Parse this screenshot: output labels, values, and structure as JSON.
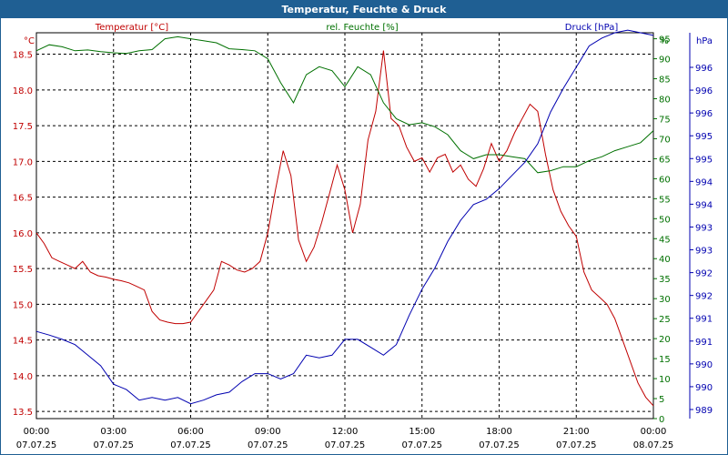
{
  "window": {
    "title": "Temperatur, Feuchte & Druck"
  },
  "colors": {
    "temperature": "#c00000",
    "humidity": "#007000",
    "pressure": "#0000b0",
    "frame": "#1f5f93"
  },
  "chart_data": {
    "type": "line",
    "title": "Temperatur, Feuchte & Druck",
    "grid": true,
    "x_ticks": [
      {
        "time": "00:00",
        "date": "07.07.25"
      },
      {
        "time": "03:00",
        "date": "07.07.25"
      },
      {
        "time": "06:00",
        "date": "07.07.25"
      },
      {
        "time": "09:00",
        "date": "07.07.25"
      },
      {
        "time": "12:00",
        "date": "07.07.25"
      },
      {
        "time": "15:00",
        "date": "07.07.25"
      },
      {
        "time": "18:00",
        "date": "07.07.25"
      },
      {
        "time": "21:00",
        "date": "07.07.25"
      },
      {
        "time": "00:00",
        "date": "08.07.25"
      }
    ],
    "axes": {
      "temperature": {
        "label": "Temperatur [°C]",
        "unit": "°C",
        "range": [
          13.4,
          18.8
        ],
        "ticks": [
          "13.5",
          "14.0",
          "14.5",
          "15.0",
          "15.5",
          "16.0",
          "16.5",
          "17.0",
          "17.5",
          "18.0",
          "18.5"
        ]
      },
      "humidity": {
        "label": "rel. Feuchte [%]",
        "unit": "%",
        "range": [
          0,
          96.5
        ],
        "ticks": [
          "0",
          "5",
          "10",
          "15",
          "20",
          "25",
          "30",
          "35",
          "40",
          "45",
          "50",
          "55",
          "60",
          "65",
          "70",
          "75",
          "80",
          "85",
          "90",
          "95"
        ]
      },
      "pressure": {
        "label": "Druck [hPa]",
        "unit": "hPa",
        "range": [
          989.4,
          996.7
        ],
        "ticks": [
          "989",
          "990",
          "990",
          "991",
          "991",
          "992",
          "992",
          "993",
          "993",
          "994",
          "994",
          "995",
          "995",
          "996",
          "996",
          "996"
        ]
      }
    },
    "series": [
      {
        "name": "Temperatur [°C]",
        "axis": "temperature",
        "x": [
          0,
          0.3,
          0.6,
          0.9,
          1.2,
          1.5,
          1.8,
          2.1,
          2.4,
          2.7,
          3.0,
          3.3,
          3.6,
          3.9,
          4.2,
          4.5,
          4.8,
          5.1,
          5.4,
          5.7,
          6.0,
          6.3,
          6.6,
          6.9,
          7.2,
          7.5,
          7.8,
          8.1,
          8.4,
          8.7,
          9.0,
          9.3,
          9.6,
          9.9,
          10.2,
          10.5,
          10.8,
          11.1,
          11.4,
          11.7,
          12.0,
          12.3,
          12.6,
          12.9,
          13.2,
          13.5,
          13.8,
          14.1,
          14.4,
          14.7,
          15.0,
          15.3,
          15.6,
          15.9,
          16.2,
          16.5,
          16.8,
          17.1,
          17.4,
          17.7,
          18.0,
          18.3,
          18.6,
          18.9,
          19.2,
          19.5,
          19.8,
          20.1,
          20.4,
          20.7,
          21.0,
          21.3,
          21.6,
          21.9,
          22.2,
          22.5,
          22.8,
          23.1,
          23.4,
          23.7,
          24.0
        ],
        "y": [
          16.0,
          15.85,
          15.65,
          15.6,
          15.55,
          15.5,
          15.6,
          15.45,
          15.4,
          15.38,
          15.35,
          15.33,
          15.3,
          15.25,
          15.2,
          14.9,
          14.78,
          14.75,
          14.73,
          14.73,
          14.75,
          14.9,
          15.05,
          15.2,
          15.6,
          15.55,
          15.48,
          15.45,
          15.5,
          15.6,
          16.0,
          16.6,
          17.15,
          16.8,
          15.9,
          15.6,
          15.8,
          16.15,
          16.55,
          16.95,
          16.6,
          16.0,
          16.4,
          17.3,
          17.7,
          18.55,
          17.6,
          17.5,
          17.2,
          17.0,
          17.05,
          16.85,
          17.05,
          17.1,
          16.85,
          16.95,
          16.75,
          16.65,
          16.9,
          17.25,
          17.0,
          17.15,
          17.4,
          17.6,
          17.8,
          17.7,
          17.1,
          16.6,
          16.3,
          16.1,
          15.95,
          15.45,
          15.2,
          15.1,
          15.0,
          14.8,
          14.5,
          14.2,
          13.9,
          13.7,
          13.58
        ]
      },
      {
        "name": "rel. Feuchte [%]",
        "axis": "humidity",
        "x": [
          0,
          0.5,
          1.0,
          1.5,
          2.0,
          2.5,
          3.0,
          3.5,
          4.0,
          4.5,
          5.0,
          5.5,
          6.0,
          6.5,
          7.0,
          7.5,
          8.0,
          8.5,
          9.0,
          9.5,
          10.0,
          10.5,
          11.0,
          11.5,
          12.0,
          12.5,
          13.0,
          13.5,
          14.0,
          14.5,
          15.0,
          15.5,
          16.0,
          16.5,
          17.0,
          17.5,
          18.0,
          18.5,
          19.0,
          19.5,
          20.0,
          20.5,
          21.0,
          21.5,
          22.0,
          22.5,
          23.0,
          23.5,
          24.0
        ],
        "y": [
          92,
          93.5,
          93,
          92,
          92.2,
          91.8,
          91.5,
          91.3,
          92,
          92.3,
          95,
          95.5,
          95,
          94.5,
          94,
          92.5,
          92.3,
          92,
          90,
          84,
          79,
          86,
          88,
          87,
          83,
          88,
          86,
          79,
          75,
          73.5,
          74,
          73,
          71,
          67,
          65,
          66,
          66,
          65.5,
          65,
          61.5,
          62,
          63,
          63,
          64.5,
          65.5,
          67,
          68,
          69,
          72
        ]
      },
      {
        "name": "Druck [hPa]",
        "axis": "pressure",
        "x": [
          0,
          0.5,
          1.0,
          1.5,
          2.0,
          2.5,
          3.0,
          3.5,
          4.0,
          4.5,
          5.0,
          5.5,
          6.0,
          6.5,
          7.0,
          7.5,
          8.0,
          8.5,
          9.0,
          9.5,
          10.0,
          10.5,
          11.0,
          11.5,
          12.0,
          12.5,
          13.0,
          13.5,
          14.0,
          14.5,
          15.0,
          15.5,
          16.0,
          16.5,
          17.0,
          17.5,
          18.0,
          18.5,
          19.0,
          19.5,
          20.0,
          20.5,
          21.0,
          21.5,
          22.0,
          22.5,
          23.0,
          23.5,
          24.0
        ],
        "y": [
          991.05,
          990.98,
          990.9,
          990.8,
          990.6,
          990.4,
          990.05,
          989.95,
          989.75,
          989.8,
          989.75,
          989.8,
          989.68,
          989.75,
          989.85,
          989.9,
          990.1,
          990.25,
          990.25,
          990.15,
          990.25,
          990.6,
          990.55,
          990.6,
          990.9,
          990.9,
          990.75,
          990.6,
          990.8,
          991.35,
          991.85,
          992.25,
          992.75,
          993.15,
          993.45,
          993.55,
          993.75,
          994.0,
          994.25,
          994.6,
          995.2,
          995.65,
          996.05,
          996.45,
          996.6,
          996.7,
          996.75,
          996.7,
          996.65
        ]
      }
    ]
  }
}
